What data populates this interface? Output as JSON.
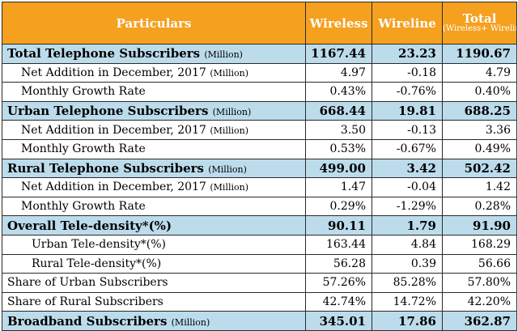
{
  "header": {
    "particulars": "Particulars",
    "wireless": "Wireless",
    "wireline": "Wireline",
    "total": "Total",
    "total_sub": "(Wireless+ Wireline)"
  },
  "rows": [
    {
      "label": "Total Telephone Subscribers",
      "unit": "(Million)",
      "wireless": "1167.44",
      "wireline": "23.23",
      "total": "1190.67"
    },
    {
      "label": "Net Addition in December, 2017",
      "unit": "(Million)",
      "wireless": "4.97",
      "wireline": "-0.18",
      "total": "4.79"
    },
    {
      "label": "Monthly Growth Rate",
      "unit": "",
      "wireless": "0.43%",
      "wireline": "-0.76%",
      "total": "0.40%"
    },
    {
      "label": "Urban Telephone Subscribers",
      "unit": "(Million)",
      "wireless": "668.44",
      "wireline": "19.81",
      "total": "688.25"
    },
    {
      "label": "Net Addition in December, 2017",
      "unit": "(Million)",
      "wireless": "3.50",
      "wireline": "-0.13",
      "total": "3.36"
    },
    {
      "label": "Monthly Growth Rate",
      "unit": "",
      "wireless": "0.53%",
      "wireline": "-0.67%",
      "total": "0.49%"
    },
    {
      "label": "Rural Telephone Subscribers",
      "unit": "(Million)",
      "wireless": "499.00",
      "wireline": "3.42",
      "total": "502.42"
    },
    {
      "label": "Net Addition in December, 2017",
      "unit": "(Million)",
      "wireless": "1.47",
      "wireline": "-0.04",
      "total": "1.42"
    },
    {
      "label": "Monthly Growth Rate",
      "unit": "",
      "wireless": "0.29%",
      "wireline": "-1.29%",
      "total": "0.28%"
    },
    {
      "label": "Overall Tele-density*(%)",
      "unit": "",
      "wireless": "90.11",
      "wireline": "1.79",
      "total": "91.90"
    },
    {
      "label": "Urban Tele-density*(%)",
      "unit": "",
      "wireless": "163.44",
      "wireline": "4.84",
      "total": "168.29"
    },
    {
      "label": "Rural Tele-density*(%)",
      "unit": "",
      "wireless": "56.28",
      "wireline": "0.39",
      "total": "56.66"
    },
    {
      "label": "Share of Urban Subscribers",
      "unit": "",
      "wireless": "57.26%",
      "wireline": "85.28%",
      "total": "57.80%"
    },
    {
      "label": "Share of Rural Subscribers",
      "unit": "",
      "wireless": "42.74%",
      "wireline": "14.72%",
      "total": "42.20%"
    },
    {
      "label": "Broadband Subscribers",
      "unit": "(Million)",
      "wireless": "345.01",
      "wireline": "17.86",
      "total": "362.87"
    }
  ],
  "colors": {
    "header_bg": "#f5a01f",
    "header_text": "#ffffff",
    "highlight_row_bg": "#bcdcec"
  }
}
